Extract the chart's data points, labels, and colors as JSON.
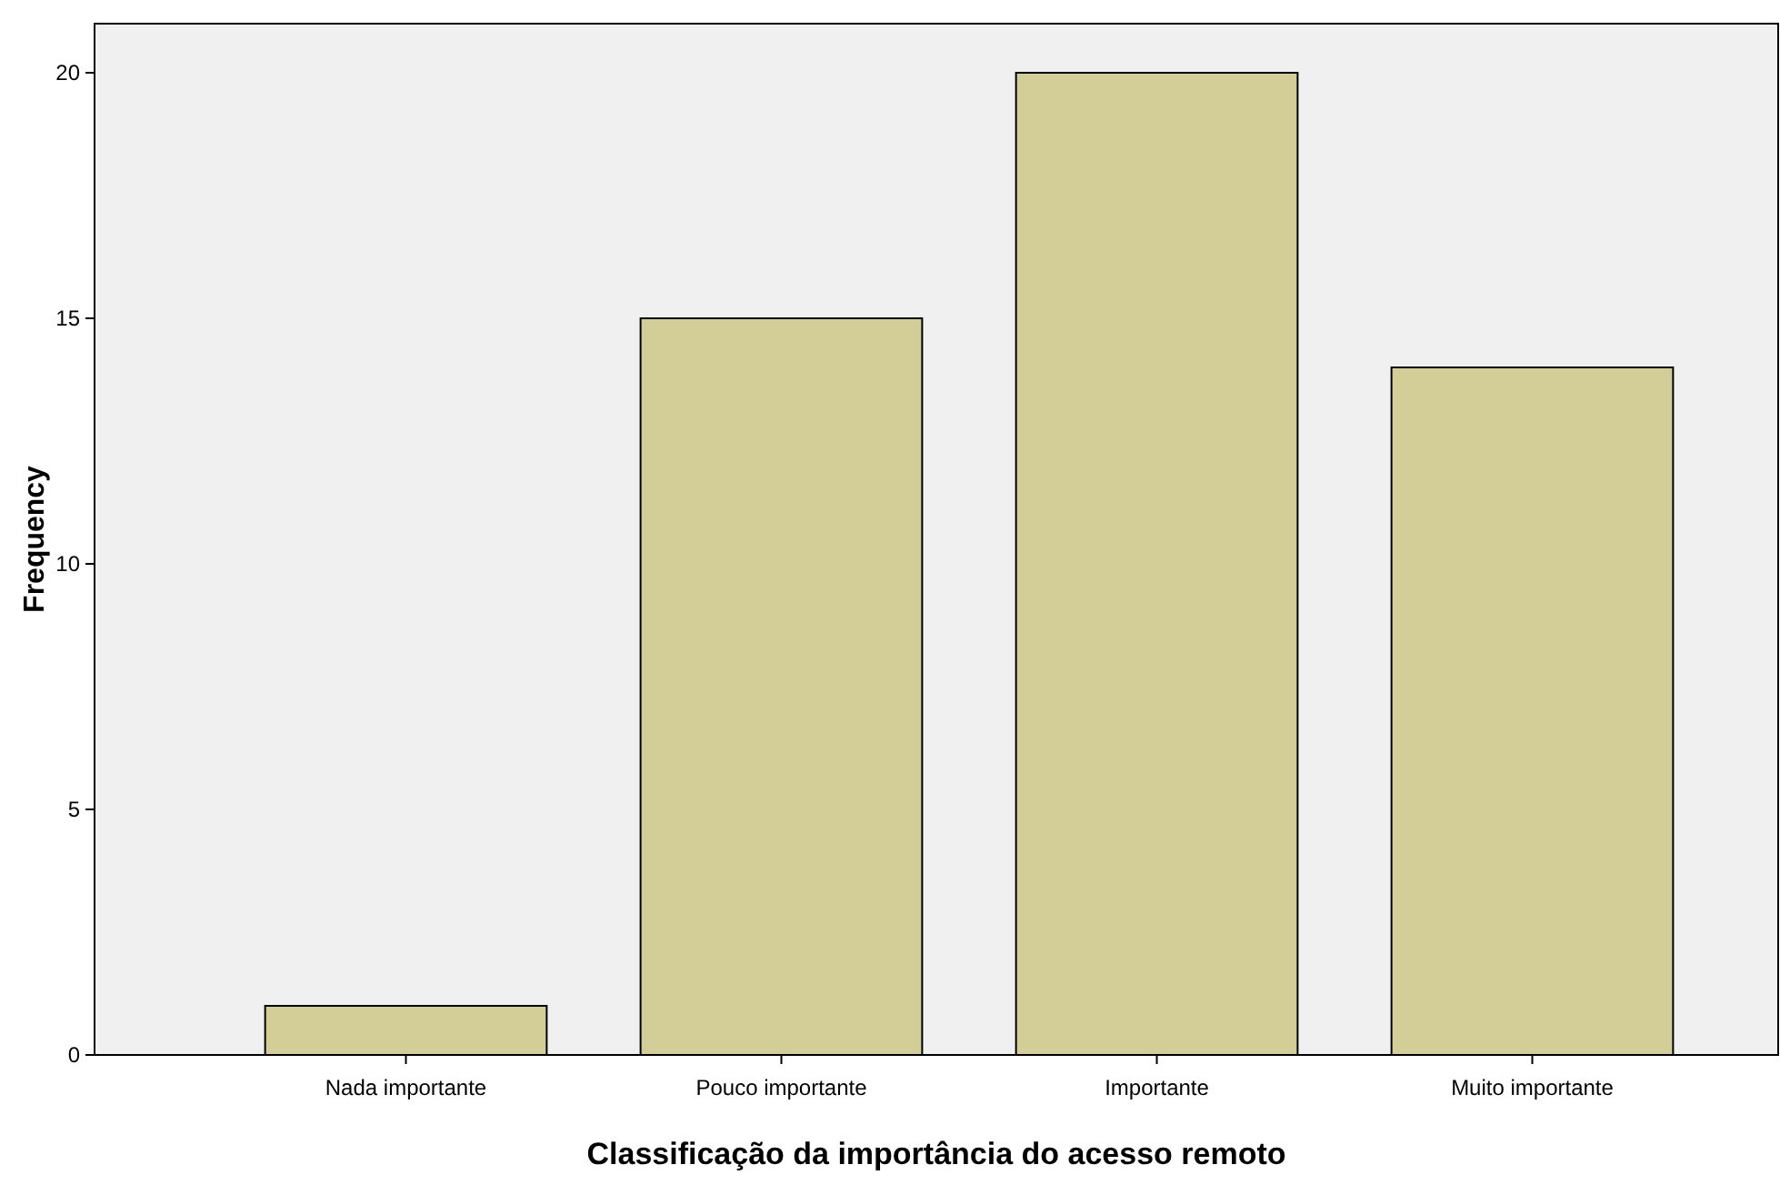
{
  "chart_data": {
    "type": "bar",
    "xlabel": "Classificação da importância do acesso remoto",
    "ylabel": "Frequency",
    "categories": [
      "Nada importante",
      "Pouco importante",
      "Importante",
      "Muito importante"
    ],
    "values": [
      1,
      15,
      20,
      14
    ],
    "color": "#d3ce97",
    "ylim": [
      0,
      21
    ],
    "yticks": [
      0,
      5,
      10,
      15,
      20
    ],
    "grid": false
  }
}
